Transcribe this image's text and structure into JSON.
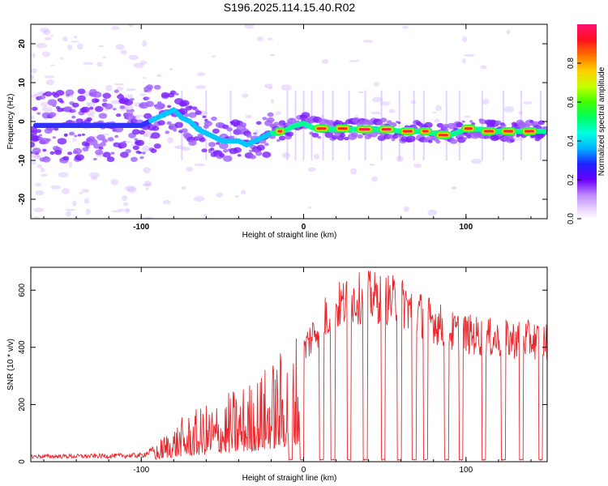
{
  "chart_data": [
    {
      "type": "heatmap",
      "title": "S196.2025.114.15.40.R02",
      "xlabel": "Height of straight line (km)",
      "ylabel": "Frequency (Hz)",
      "xlim": [
        -168,
        150
      ],
      "ylim": [
        -25,
        25
      ],
      "xticks": [
        -100,
        0,
        100
      ],
      "yticks": [
        -20,
        -10,
        0,
        10,
        20
      ],
      "colorbar_label": "Normalized spectral amplitude",
      "colorbar_ticks": [
        "0.0",
        "0.2",
        "0.4",
        "0.6",
        "0.8"
      ],
      "ridge": {
        "x": [
          -165,
          -150,
          -140,
          -130,
          -120,
          -110,
          -100,
          -95,
          -90,
          -85,
          -80,
          -75,
          -70,
          -65,
          -60,
          -55,
          -50,
          -45,
          -40,
          -35,
          -30,
          -25,
          -20,
          -15,
          -10,
          -5,
          0,
          5,
          10,
          20,
          30,
          40,
          50,
          60,
          70,
          80,
          90,
          100,
          110,
          120,
          130,
          140,
          148
        ],
        "y": [
          -1,
          -1,
          -1,
          -1,
          -1,
          -1,
          -1,
          0,
          1,
          2,
          3,
          1,
          0,
          -2,
          -3,
          -4,
          -5,
          -5,
          -5,
          -6,
          -5,
          -4,
          -3,
          -3,
          -2,
          -1,
          -0.5,
          -1.5,
          -2,
          -2,
          -2,
          -2,
          -2,
          -2.5,
          -2.5,
          -3,
          -3.5,
          -2,
          -2,
          -2.5,
          -2.5,
          -2.5,
          -2.5
        ]
      },
      "strong_segments": [
        {
          "x": [
            -17,
            -12
          ],
          "y": -2.5
        },
        {
          "x": [
            7,
            15
          ],
          "y": -1.8
        },
        {
          "x": [
            20,
            28
          ],
          "y": -1.8
        },
        {
          "x": [
            33,
            42
          ],
          "y": -2
        },
        {
          "x": [
            47,
            55
          ],
          "y": -2
        },
        {
          "x": [
            60,
            68
          ],
          "y": -2.5
        },
        {
          "x": [
            72,
            78
          ],
          "y": -2.5
        },
        {
          "x": [
            82,
            90
          ],
          "y": -3.5
        },
        {
          "x": [
            98,
            105
          ],
          "y": -1.8
        },
        {
          "x": [
            110,
            118
          ],
          "y": -2.5
        },
        {
          "x": [
            122,
            130
          ],
          "y": -2.5
        },
        {
          "x": [
            135,
            143
          ],
          "y": -2.5
        }
      ]
    },
    {
      "type": "line",
      "xlabel": "Height of straight line (km)",
      "ylabel": "SNR (10 * v/v)",
      "xlim": [
        -168,
        150
      ],
      "ylim": [
        0,
        680
      ],
      "xticks": [
        -100,
        0,
        100
      ],
      "yticks": [
        0,
        200,
        400,
        600
      ],
      "color": "#e8262b",
      "snr_envelope": {
        "x": [
          -168,
          -120,
          -100,
          -92,
          -85,
          -75,
          -60,
          -45,
          -30,
          -20,
          -10,
          -5,
          0,
          10,
          20,
          30,
          40,
          50,
          60,
          70,
          80,
          90,
          100,
          110,
          120,
          130,
          140,
          150
        ],
        "y": [
          18,
          20,
          22,
          40,
          90,
          130,
          170,
          210,
          250,
          300,
          350,
          390,
          420,
          520,
          580,
          610,
          620,
          610,
          600,
          560,
          530,
          490,
          480,
          470,
          460,
          460,
          460,
          450
        ]
      },
      "dropouts_x": [
        -8,
        -1,
        11,
        18,
        28,
        38,
        49,
        59,
        68,
        75,
        88,
        97,
        111,
        123,
        134,
        146
      ]
    }
  ]
}
